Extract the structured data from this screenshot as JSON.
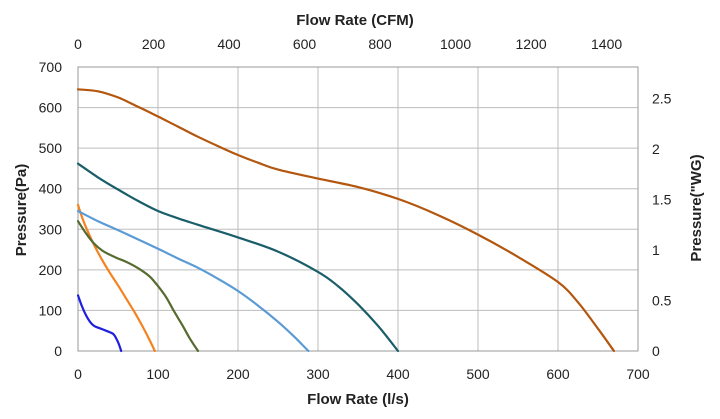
{
  "chart_data": {
    "type": "line",
    "title": "",
    "grid": true,
    "legend": "none",
    "xlabel": "Flow Rate (l/s)",
    "xlim": [
      0,
      700
    ],
    "xticks": [
      "0",
      "100",
      "200",
      "300",
      "400",
      "500",
      "600",
      "700"
    ],
    "ylabel": "Pressure(Pa)",
    "ylim": [
      0,
      700
    ],
    "yticks": [
      "0",
      "100",
      "200",
      "300",
      "400",
      "500",
      "600",
      "700"
    ],
    "x2label": "Flow Rate (CFM)",
    "x2lim": [
      0,
      1483.2
    ],
    "x2ticks": [
      "0",
      "200",
      "400",
      "600",
      "800",
      "1000",
      "1200",
      "1400"
    ],
    "y2label": "Pressure(\"WG)",
    "y2lim": [
      0,
      2.81
    ],
    "y2ticks": [
      "0",
      "0.5",
      "1",
      "1.5",
      "2",
      "2.5"
    ],
    "series": [
      {
        "color": "#1f1fe0",
        "x": [
          0,
          5,
          10,
          15,
          20,
          30,
          40,
          45,
          50,
          54
        ],
        "y": [
          137,
          110,
          88,
          72,
          62,
          54,
          46,
          40,
          22,
          0
        ]
      },
      {
        "color": "#f58220",
        "x": [
          0,
          5,
          10,
          20,
          30,
          40,
          50,
          60,
          70,
          80,
          90,
          96
        ],
        "y": [
          360,
          330,
          305,
          262,
          225,
          192,
          162,
          130,
          98,
          63,
          25,
          0
        ]
      },
      {
        "color": "#556b2f",
        "x": [
          0,
          10,
          20,
          30,
          40,
          50,
          60,
          70,
          80,
          90,
          100,
          110,
          120,
          130,
          140,
          150
        ],
        "y": [
          320,
          290,
          265,
          248,
          237,
          228,
          220,
          210,
          198,
          183,
          160,
          133,
          98,
          65,
          30,
          0
        ]
      },
      {
        "color": "#5b9bd5",
        "x": [
          0,
          25,
          50,
          75,
          100,
          125,
          150,
          175,
          200,
          225,
          250,
          270,
          280,
          288
        ],
        "y": [
          345,
          320,
          298,
          275,
          252,
          228,
          205,
          178,
          148,
          112,
          72,
          36,
          16,
          0
        ]
      },
      {
        "color": "#1a5e6a",
        "x": [
          0,
          25,
          50,
          75,
          100,
          125,
          150,
          200,
          250,
          300,
          325,
          350,
          375,
          400
        ],
        "y": [
          462,
          428,
          398,
          370,
          345,
          327,
          311,
          280,
          245,
          195,
          160,
          115,
          62,
          0
        ]
      },
      {
        "color": "#b3560e",
        "x": [
          0,
          25,
          50,
          75,
          100,
          125,
          150,
          175,
          200,
          225,
          250,
          300,
          350,
          400,
          450,
          500,
          550,
          600,
          625,
          650,
          670
        ],
        "y": [
          645,
          640,
          625,
          602,
          578,
          553,
          528,
          505,
          483,
          464,
          447,
          425,
          404,
          375,
          335,
          287,
          232,
          170,
          120,
          55,
          0
        ]
      }
    ]
  }
}
